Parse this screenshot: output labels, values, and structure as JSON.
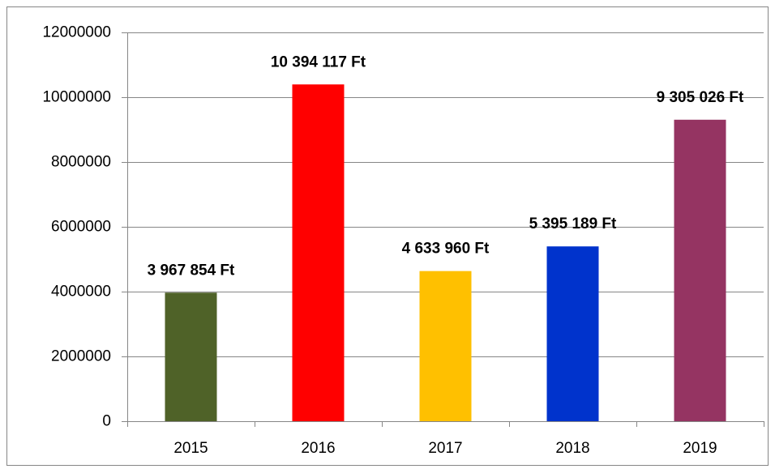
{
  "chart_data": {
    "type": "bar",
    "categories": [
      "2015",
      "2016",
      "2017",
      "2018",
      "2019"
    ],
    "values": [
      3967854,
      10394117,
      4633960,
      5395189,
      9305026
    ],
    "value_labels": [
      "3 967 854 Ft",
      "10 394 117 Ft",
      "4 633 960 Ft",
      "5 395 189 Ft",
      "9 305 026 Ft"
    ],
    "colors": [
      "#4f6228",
      "#ff0000",
      "#ffc000",
      "#0033cc",
      "#953462"
    ],
    "ylim": [
      0,
      12000000
    ],
    "yticks": [
      0,
      2000000,
      4000000,
      6000000,
      8000000,
      10000000,
      12000000
    ],
    "grid": true
  }
}
